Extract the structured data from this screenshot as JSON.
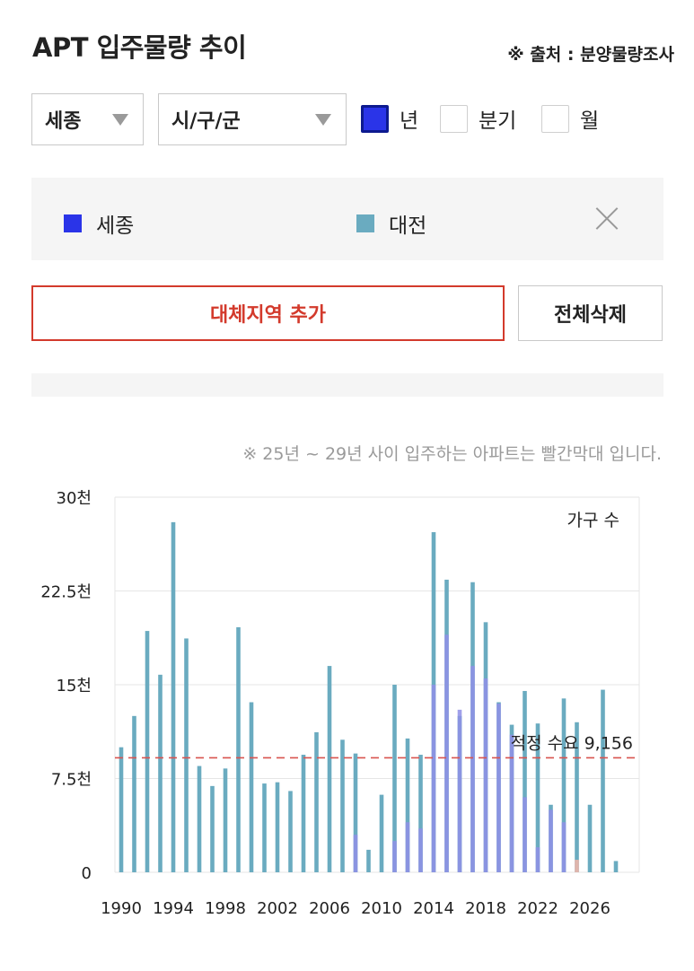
{
  "header": {
    "title": "APT 입주물량 추이",
    "source": "※ 출처 : 분양물량조사"
  },
  "filters": {
    "region": "세종",
    "district": "시/구/군",
    "periods": [
      {
        "label": "년",
        "checked": true
      },
      {
        "label": "분기",
        "checked": false
      },
      {
        "label": "월",
        "checked": false
      }
    ]
  },
  "legend": [
    {
      "label": "세종",
      "color": "#2a34e8"
    },
    {
      "label": "대전",
      "color": "#6aabc0"
    }
  ],
  "buttons": {
    "add_region": "대체지역 추가",
    "delete_all": "전체삭제"
  },
  "note": "※ 25년 ~ 29년 사이 입주하는 아파트는 빨간막대 입니다.",
  "chart_data": {
    "type": "bar",
    "unit_label": "가구 수",
    "y_ticks": [
      "0",
      "7.5천",
      "15천",
      "22.5천",
      "30천"
    ],
    "y_tick_values": [
      0,
      7500,
      15000,
      22500,
      30000
    ],
    "ylim": [
      0,
      30000
    ],
    "x_tick_labels": [
      "1990",
      "1994",
      "1998",
      "2002",
      "2006",
      "2010",
      "2014",
      "2018",
      "2022",
      "2026"
    ],
    "x_tick_years": [
      1990,
      1994,
      1998,
      2002,
      2006,
      2010,
      2014,
      2018,
      2022,
      2026
    ],
    "reference_line": {
      "label": "적정 수요 9,156",
      "value": 9156,
      "color": "#d9534f"
    },
    "series": [
      {
        "name": "세종",
        "color": "#8f8fe6",
        "x": [
          1990,
          1991,
          1992,
          1993,
          1994,
          1995,
          1996,
          1997,
          1998,
          1999,
          2000,
          2001,
          2002,
          2003,
          2004,
          2005,
          2006,
          2007,
          2008,
          2009,
          2010,
          2011,
          2012,
          2013,
          2014,
          2015,
          2016,
          2017,
          2018,
          2019,
          2020,
          2021,
          2022,
          2023,
          2024,
          2025,
          2026,
          2027,
          2028
        ],
        "values": [
          0,
          0,
          0,
          0,
          0,
          0,
          0,
          0,
          0,
          0,
          0,
          0,
          0,
          0,
          0,
          0,
          0,
          0,
          3000,
          0,
          0,
          2500,
          4000,
          3500,
          15000,
          19000,
          13000,
          16500,
          15500,
          13500,
          11000,
          6000,
          2000,
          5000,
          4000,
          1000,
          0,
          0,
          0
        ]
      },
      {
        "name": "대전",
        "color": "#6aabc0",
        "x": [
          1990,
          1991,
          1992,
          1993,
          1994,
          1995,
          1996,
          1997,
          1998,
          1999,
          2000,
          2001,
          2002,
          2003,
          2004,
          2005,
          2006,
          2007,
          2008,
          2009,
          2010,
          2011,
          2012,
          2013,
          2014,
          2015,
          2016,
          2017,
          2018,
          2019,
          2020,
          2021,
          2022,
          2023,
          2024,
          2025,
          2026,
          2027,
          2028
        ],
        "values": [
          10000,
          12500,
          19300,
          15800,
          28000,
          18700,
          8500,
          6900,
          8300,
          19600,
          13600,
          7100,
          7200,
          6500,
          9400,
          11200,
          16500,
          10600,
          9500,
          1800,
          6200,
          15000,
          10700,
          9400,
          27200,
          23400,
          12500,
          23200,
          20000,
          13600,
          11800,
          14500,
          11900,
          5400,
          13900,
          12000,
          5400,
          14600,
          900
        ]
      }
    ]
  }
}
